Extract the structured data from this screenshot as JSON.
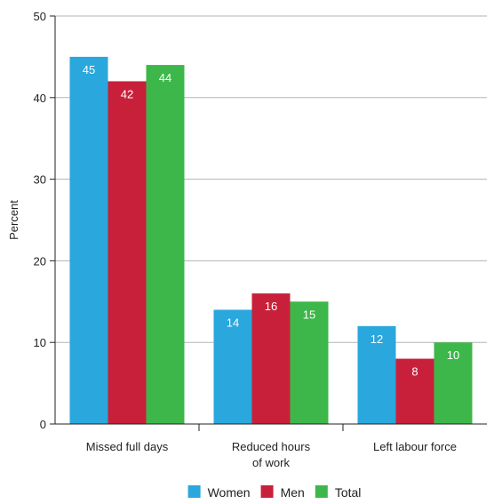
{
  "chart_data": {
    "type": "bar",
    "title": "",
    "xlabel": "",
    "ylabel": "Percent",
    "ylim": [
      0,
      50
    ],
    "yticks": [
      0,
      10,
      20,
      30,
      40,
      50
    ],
    "grid": true,
    "legend": "bottom",
    "categories": [
      [
        "Missed full days"
      ],
      [
        "Reduced hours",
        "of work"
      ],
      [
        "Left labour force"
      ]
    ],
    "series": [
      {
        "name": "Women",
        "color": "#2aa7dc",
        "values": [
          45,
          14,
          12
        ]
      },
      {
        "name": "Men",
        "color": "#c8203a",
        "values": [
          42,
          16,
          8
        ]
      },
      {
        "name": "Total",
        "color": "#3eb74a",
        "values": [
          44,
          15,
          10
        ]
      }
    ]
  }
}
